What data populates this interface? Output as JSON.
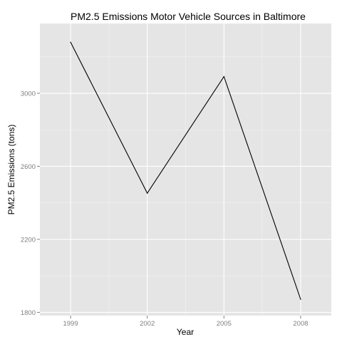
{
  "chart_data": {
    "type": "line",
    "title": "PM2.5 Emissions Motor Vehicle Sources in Baltimore",
    "xlabel": "Year",
    "ylabel": "PM2.5 Emissions (tons)",
    "x": [
      1999,
      2002,
      2005,
      2008
    ],
    "x_tick_labels": [
      "1999",
      "2002",
      "2005",
      "2008"
    ],
    "y_ticks": [
      1800,
      2200,
      2600,
      3000
    ],
    "y_tick_labels": [
      "1800",
      "2200",
      "2600",
      "3000"
    ],
    "xlim": [
      1997.8,
      2009.2
    ],
    "ylim": [
      1782,
      3382
    ],
    "series": [
      {
        "values": [
          3279.5,
          2452.7,
          3091.4,
          1871.3
        ]
      }
    ],
    "grid": true,
    "colors": {
      "panel_background": "#e5e5e5",
      "grid_major": "#ffffff",
      "grid_minor": "#f2f2f2",
      "line": "#000000",
      "tick_text": "#7f7f7f"
    }
  }
}
